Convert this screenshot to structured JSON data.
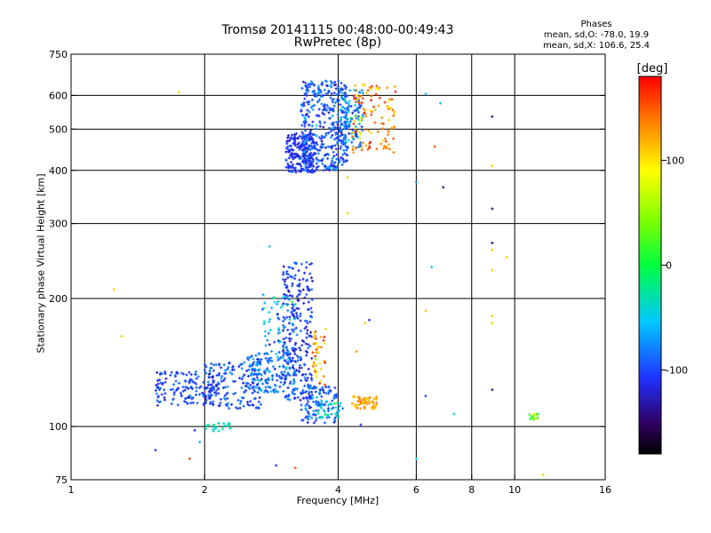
{
  "chart_data": {
    "type": "scatter",
    "title": "Tromsø 20141115 00:48:00-00:49:43",
    "subtitle": "RwPretec (8p)",
    "xlabel": "Frequency [MHz]",
    "ylabel": "Stationary phase Virtual Height [km]",
    "x_scale": "log2",
    "y_scale": "log",
    "xlim": [
      1,
      16
    ],
    "ylim": [
      75,
      750
    ],
    "x_ticks": [
      1,
      2,
      4,
      6,
      8,
      10,
      16
    ],
    "x_tick_labels": [
      "1",
      "2",
      "4",
      "6",
      "8",
      "10",
      "16"
    ],
    "y_ticks": [
      75,
      100,
      200,
      300,
      400,
      500,
      600,
      750
    ],
    "y_tick_labels": [
      "75",
      "100",
      "200",
      "300",
      "400",
      "500",
      "600",
      "750"
    ],
    "grid": true,
    "phases_note": {
      "title": "Phases",
      "line1": "mean, sd,O: -78.0, 19.9",
      "line2": "mean, sd,X: 106.6, 25.4"
    },
    "colorbar": {
      "label": "[deg]",
      "range": [
        -180,
        180
      ],
      "ticks": [
        100,
        0,
        -100
      ],
      "tick_labels": [
        "100",
        "0",
        "-100"
      ]
    },
    "clusters": [
      {
        "fmin": 3.05,
        "fmax": 3.55,
        "hmin": 395,
        "hmax": 490,
        "phase_mean": -110,
        "phase_sd": 8,
        "n": 220
      },
      {
        "fmin": 3.3,
        "fmax": 4.2,
        "hmin": 400,
        "hmax": 650,
        "phase_mean": -95,
        "phase_sd": 18,
        "n": 380
      },
      {
        "fmin": 4.05,
        "fmax": 4.55,
        "hmin": 450,
        "hmax": 620,
        "phase_mean": -75,
        "phase_sd": 25,
        "n": 120
      },
      {
        "fmin": 4.3,
        "fmax": 5.4,
        "hmin": 440,
        "hmax": 640,
        "phase_mean": 130,
        "phase_sd": 25,
        "n": 110
      },
      {
        "fmin": 1.55,
        "fmax": 2.1,
        "hmin": 112,
        "hmax": 135,
        "phase_mean": -100,
        "phase_sd": 12,
        "n": 140
      },
      {
        "fmin": 2.0,
        "fmax": 2.7,
        "hmin": 110,
        "hmax": 142,
        "phase_mean": -95,
        "phase_sd": 15,
        "n": 170
      },
      {
        "fmin": 2.5,
        "fmax": 3.2,
        "hmin": 120,
        "hmax": 150,
        "phase_mean": -85,
        "phase_sd": 18,
        "n": 150
      },
      {
        "fmin": 2.7,
        "fmax": 3.2,
        "hmin": 150,
        "hmax": 205,
        "phase_mean": -60,
        "phase_sd": 30,
        "n": 60
      },
      {
        "fmin": 3.0,
        "fmax": 3.5,
        "hmin": 115,
        "hmax": 245,
        "phase_mean": -105,
        "phase_sd": 15,
        "n": 260
      },
      {
        "fmin": 3.3,
        "fmax": 4.0,
        "hmin": 102,
        "hmax": 125,
        "phase_mean": -90,
        "phase_sd": 20,
        "n": 120
      },
      {
        "fmin": 3.5,
        "fmax": 4.1,
        "hmin": 105,
        "hmax": 115,
        "phase_mean": -40,
        "phase_sd": 20,
        "n": 30
      },
      {
        "fmin": 3.5,
        "fmax": 3.75,
        "hmin": 125,
        "hmax": 170,
        "phase_mean": 130,
        "phase_sd": 30,
        "n": 40
      },
      {
        "fmin": 4.3,
        "fmax": 4.9,
        "hmin": 110,
        "hmax": 118,
        "phase_mean": 125,
        "phase_sd": 15,
        "n": 55
      },
      {
        "fmin": 2.0,
        "fmax": 2.3,
        "hmin": 97,
        "hmax": 102,
        "phase_mean": -30,
        "phase_sd": 10,
        "n": 20
      },
      {
        "fmin": 10.8,
        "fmax": 11.3,
        "hmin": 103,
        "hmax": 108,
        "phase_mean": 40,
        "phase_sd": 30,
        "n": 14
      }
    ],
    "scatter_points": [
      {
        "x": 1.75,
        "y": 610,
        "phase": 110
      },
      {
        "x": 6.3,
        "y": 605,
        "phase": -50
      },
      {
        "x": 6.8,
        "y": 575,
        "phase": -50
      },
      {
        "x": 8.9,
        "y": 535,
        "phase": -140
      },
      {
        "x": 6.6,
        "y": 455,
        "phase": 150
      },
      {
        "x": 8.9,
        "y": 410,
        "phase": 110
      },
      {
        "x": 4.2,
        "y": 385,
        "phase": 110
      },
      {
        "x": 6.0,
        "y": 375,
        "phase": -80
      },
      {
        "x": 6.9,
        "y": 365,
        "phase": -140
      },
      {
        "x": 8.9,
        "y": 325,
        "phase": -140
      },
      {
        "x": 4.2,
        "y": 317,
        "phase": 110
      },
      {
        "x": 8.9,
        "y": 270,
        "phase": -140
      },
      {
        "x": 8.9,
        "y": 260,
        "phase": 110
      },
      {
        "x": 9.6,
        "y": 250,
        "phase": 110
      },
      {
        "x": 8.9,
        "y": 233,
        "phase": 110
      },
      {
        "x": 6.5,
        "y": 237,
        "phase": -50
      },
      {
        "x": 2.8,
        "y": 265,
        "phase": -50
      },
      {
        "x": 1.25,
        "y": 210,
        "phase": 110
      },
      {
        "x": 6.3,
        "y": 187,
        "phase": 110
      },
      {
        "x": 8.9,
        "y": 182,
        "phase": 110
      },
      {
        "x": 8.9,
        "y": 175,
        "phase": 110
      },
      {
        "x": 4.6,
        "y": 175,
        "phase": 110
      },
      {
        "x": 1.3,
        "y": 163,
        "phase": 110
      },
      {
        "x": 4.4,
        "y": 150,
        "phase": 130
      },
      {
        "x": 8.9,
        "y": 122,
        "phase": -140
      },
      {
        "x": 6.3,
        "y": 118,
        "phase": -100
      },
      {
        "x": 7.3,
        "y": 107,
        "phase": -40
      },
      {
        "x": 4.5,
        "y": 101,
        "phase": -110
      },
      {
        "x": 1.9,
        "y": 98,
        "phase": -110
      },
      {
        "x": 1.95,
        "y": 92,
        "phase": -60
      },
      {
        "x": 1.55,
        "y": 88,
        "phase": -110
      },
      {
        "x": 1.85,
        "y": 84,
        "phase": 160
      },
      {
        "x": 6.0,
        "y": 84,
        "phase": -50
      },
      {
        "x": 2.9,
        "y": 81,
        "phase": -110
      },
      {
        "x": 3.2,
        "y": 80,
        "phase": 150
      },
      {
        "x": 11.6,
        "y": 77,
        "phase": 110
      },
      {
        "x": 2.9,
        "y": 148,
        "phase": -40
      },
      {
        "x": 4.7,
        "y": 178,
        "phase": -110
      }
    ]
  }
}
